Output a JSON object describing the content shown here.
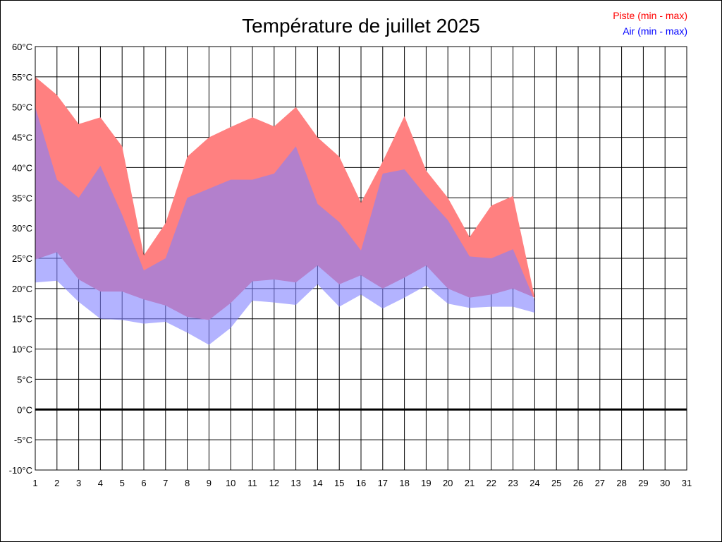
{
  "chart_data": {
    "type": "area",
    "title": "Température de juillet 2025",
    "xlabel": "",
    "ylabel": "",
    "ylim": [
      -10,
      60
    ],
    "xlim": [
      1,
      31
    ],
    "y_ticks": [
      -10,
      -5,
      0,
      5,
      10,
      15,
      20,
      25,
      30,
      35,
      40,
      45,
      50,
      55,
      60
    ],
    "y_tick_suffix": "°C",
    "x_ticks": [
      1,
      2,
      3,
      4,
      5,
      6,
      7,
      8,
      9,
      10,
      11,
      12,
      13,
      14,
      15,
      16,
      17,
      18,
      19,
      20,
      21,
      22,
      23,
      24,
      25,
      26,
      27,
      28,
      29,
      30,
      31
    ],
    "grid": true,
    "legend_position": "top-right",
    "x": [
      1,
      2,
      3,
      4,
      5,
      6,
      7,
      8,
      9,
      10,
      11,
      12,
      13,
      14,
      15,
      16,
      17,
      18,
      19,
      20,
      21,
      22,
      23,
      24
    ],
    "series": [
      {
        "name": "Piste (min - max)",
        "color": "#ff8080",
        "min": [
          24.8,
          26.0,
          21.5,
          19.5,
          19.5,
          18.2,
          17.2,
          15.3,
          14.8,
          17.6,
          21.2,
          21.5,
          21.0,
          23.8,
          20.7,
          22.2,
          20.0,
          21.8,
          23.8,
          20.0,
          18.5,
          19.0,
          20.0,
          18.5
        ],
        "max": [
          55.0,
          52.0,
          47.2,
          48.3,
          43.5,
          25.5,
          30.8,
          41.8,
          45.0,
          46.7,
          48.3,
          46.8,
          50.0,
          45.0,
          41.8,
          34.2,
          41.0,
          48.5,
          39.5,
          35.0,
          28.5,
          33.7,
          35.3,
          18.5
        ]
      },
      {
        "name": "Air (min - max)",
        "color": "#8080ff",
        "min": [
          21.0,
          21.3,
          17.8,
          15.0,
          14.8,
          14.2,
          14.5,
          12.7,
          10.7,
          13.5,
          18.0,
          17.7,
          17.3,
          20.7,
          17.0,
          19.0,
          16.7,
          18.5,
          20.5,
          17.5,
          16.8,
          17.0,
          17.0,
          16.0
        ],
        "max": [
          50.0,
          38.0,
          35.0,
          40.3,
          32.2,
          23.0,
          25.0,
          35.0,
          36.5,
          38.0,
          38.0,
          39.0,
          43.5,
          34.0,
          31.0,
          26.3,
          39.0,
          39.7,
          35.3,
          31.3,
          25.3,
          25.0,
          26.5,
          18.0
        ]
      }
    ]
  }
}
